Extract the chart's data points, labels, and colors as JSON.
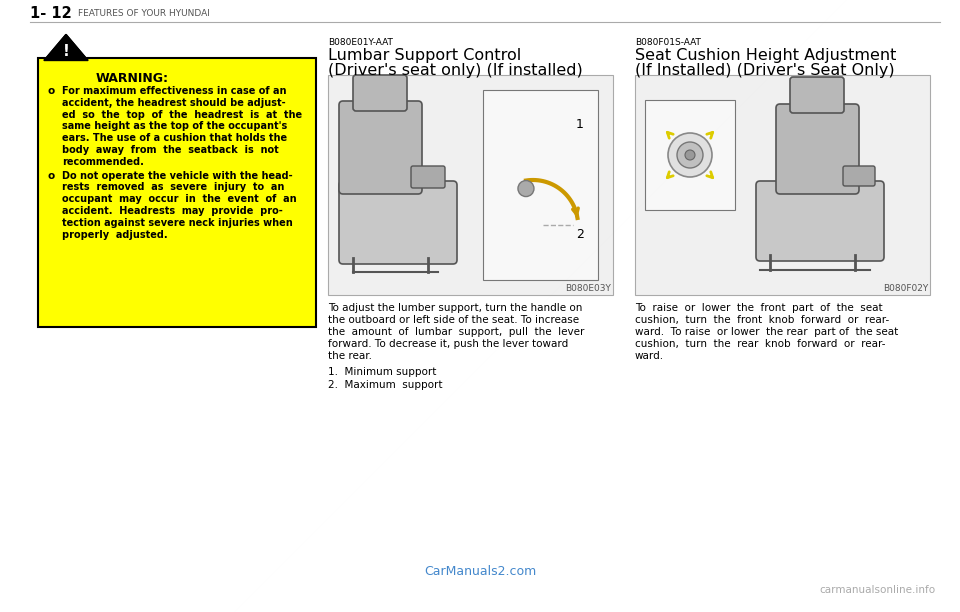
{
  "title_number": "1- 12",
  "title_section": "FEATURES OF YOUR HYUNDAI",
  "warning_title": "WARNING:",
  "warning_bullet1_lines": [
    "For maximum effectiveness in case of an",
    "accident, the headrest should be adjust-",
    "ed  so  the  top  of  the  headrest  is  at  the",
    "same height as the top of the occupant's",
    "ears. The use of a cushion that holds the",
    "body  away  from  the  seatback  is  not",
    "recommended."
  ],
  "warning_bullet2_lines": [
    "Do not operate the vehicle with the head-",
    "rests  removed  as  severe  injury  to  an",
    "occupant  may  occur  in  the  event  of  an",
    "accident.  Headrests  may  provide  pro-",
    "tection against severe neck injuries when",
    "properly  adjusted."
  ],
  "section1_code": "B080E01Y-AAT",
  "section1_title1": "Lumbar Support Control",
  "section1_title2": "(Driver's seat only) (If installed)",
  "section1_img_code": "B080E03Y",
  "section1_body_lines": [
    "To adjust the lumber support, turn the handle on",
    "the outboard or left side of the seat. To increase",
    "the  amount  of  lumbar  support,  pull  the  lever",
    "forward. To decrease it, push the lever toward",
    "the rear."
  ],
  "section1_list": [
    "1.  Minimum support",
    "2.  Maximum  support"
  ],
  "section2_code": "B080F01S-AAT",
  "section2_title1": "Seat Cushion Height Adjustment",
  "section2_title2": "(If Installed) (Driver's Seat Only)",
  "section2_img_code": "B080F02Y",
  "section2_body_lines": [
    "To  raise  or  lower  the  front  part  of  the  seat",
    "cushion,  turn  the  front  knob  forward  or  rear-",
    "ward.  To raise  or lower  the rear  part of  the seat",
    "cushion,  turn  the  rear  knob  forward  or  rear-",
    "ward."
  ],
  "footer_link": "CarManuals2.com",
  "watermark": "carmanualsonline.info",
  "bg_color": "#ffffff",
  "warning_bg": "#ffff00",
  "warning_border": "#000000",
  "text_color": "#000000",
  "header_line_color": "#aaaaaa",
  "footer_link_color": "#4488cc"
}
